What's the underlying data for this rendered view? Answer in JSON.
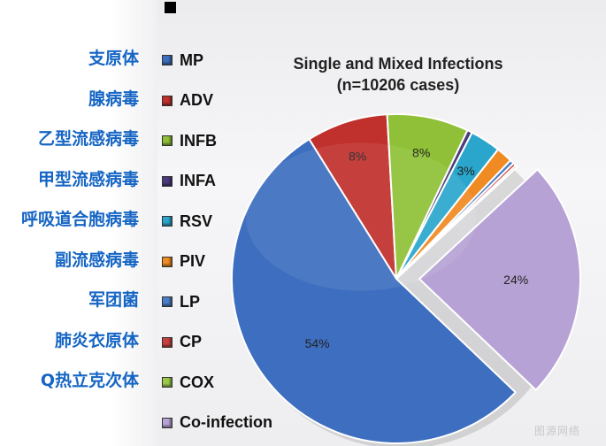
{
  "chart_data": {
    "type": "pie",
    "title": "Single and Mixed Infections",
    "subtitle": "(n=10206 cases)",
    "legend_position": "left",
    "series": [
      {
        "name": "MP",
        "label_cn": "支原体",
        "value": 54,
        "label": "54%",
        "color": "#3d6ebf"
      },
      {
        "name": "ADV",
        "label_cn": "腺病毒",
        "value": 8,
        "label": "8%",
        "color": "#c0302d"
      },
      {
        "name": "INFB",
        "label_cn": "乙型流感病毒",
        "value": 8,
        "label": "8%",
        "color": "#8fc037"
      },
      {
        "name": "INFA",
        "label_cn": "甲型流感病毒",
        "value": 0.5,
        "label": "",
        "color": "#4a3b7a"
      },
      {
        "name": "RSV",
        "label_cn": "呼吸道合胞病毒",
        "value": 3,
        "label": "3%",
        "color": "#2aa6cc"
      },
      {
        "name": "PIV",
        "label_cn": "副流感病毒",
        "value": 1.6,
        "label": "",
        "color": "#f08a22"
      },
      {
        "name": "LP",
        "label_cn": "军团菌",
        "value": 0.4,
        "label": "",
        "color": "#4a7ec8"
      },
      {
        "name": "CP",
        "label_cn": "肺炎衣原体",
        "value": 0.3,
        "label": "",
        "color": "#c94040"
      },
      {
        "name": "COX",
        "label_cn": "Q热立克次体",
        "value": 0.2,
        "label": "",
        "color": "#9acb48"
      },
      {
        "name": "Co-infection",
        "label_cn": "",
        "value": 24,
        "label": "24%",
        "color": "#b6a2d4",
        "exploded": true
      }
    ]
  },
  "watermark": "图源网络"
}
